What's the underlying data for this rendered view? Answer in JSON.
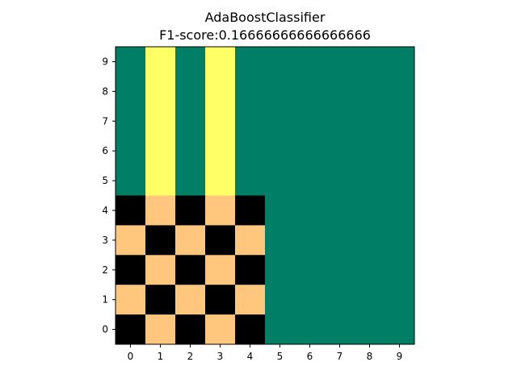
{
  "chart_data": {
    "type": "heatmap",
    "title": "AdaBoostClassifier",
    "subtitle": "F1-score:0.16666666666666666",
    "x_ticks": [
      "0",
      "1",
      "2",
      "3",
      "4",
      "5",
      "6",
      "7",
      "8",
      "9"
    ],
    "y_ticks": [
      "0",
      "1",
      "2",
      "3",
      "4",
      "5",
      "6",
      "7",
      "8",
      "9"
    ],
    "grid": false,
    "palette": {
      "0": "#000000",
      "1": "#ffc67e",
      "2": "#007f66",
      "3": "#ffff66"
    },
    "rows_top_to_bottom": [
      [
        2,
        3,
        2,
        3,
        2,
        2,
        2,
        2,
        2,
        2
      ],
      [
        2,
        3,
        2,
        3,
        2,
        2,
        2,
        2,
        2,
        2
      ],
      [
        2,
        3,
        2,
        3,
        2,
        2,
        2,
        2,
        2,
        2
      ],
      [
        2,
        3,
        2,
        3,
        2,
        2,
        2,
        2,
        2,
        2
      ],
      [
        2,
        3,
        2,
        3,
        2,
        2,
        2,
        2,
        2,
        2
      ],
      [
        0,
        1,
        0,
        1,
        0,
        2,
        2,
        2,
        2,
        2
      ],
      [
        1,
        0,
        1,
        0,
        1,
        2,
        2,
        2,
        2,
        2
      ],
      [
        0,
        1,
        0,
        1,
        0,
        2,
        2,
        2,
        2,
        2
      ],
      [
        1,
        0,
        1,
        0,
        1,
        2,
        2,
        2,
        2,
        2
      ],
      [
        0,
        1,
        0,
        1,
        0,
        2,
        2,
        2,
        2,
        2
      ]
    ]
  }
}
